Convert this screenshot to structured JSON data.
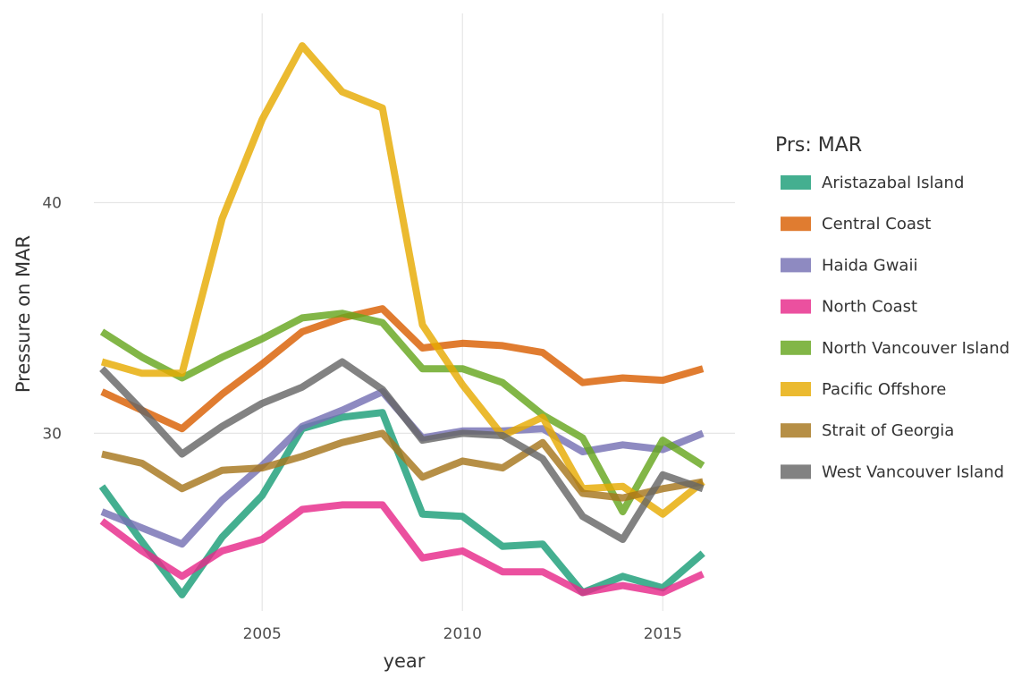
{
  "chart_data": {
    "type": "line",
    "xlabel": "year",
    "ylabel": "Pressure on MAR",
    "legend_title": "Prs: MAR",
    "legend_position": "right",
    "grid": true,
    "xlim": [
      2000.8,
      2016.8
    ],
    "ylim": [
      22.3,
      48.2
    ],
    "x_ticks": [
      2005,
      2010,
      2015
    ],
    "y_ticks": [
      30,
      40
    ],
    "x": [
      2001,
      2002,
      2003,
      2004,
      2005,
      2006,
      2007,
      2008,
      2009,
      2010,
      2011,
      2012,
      2013,
      2014,
      2015,
      2016
    ],
    "series": [
      {
        "name": "Aristazabal Island",
        "color": "#1b9e77",
        "values": [
          27.7,
          25.3,
          23.0,
          25.5,
          27.3,
          30.2,
          30.7,
          30.9,
          26.5,
          26.4,
          25.1,
          25.2,
          23.1,
          23.8,
          23.3,
          24.8
        ]
      },
      {
        "name": "Central Coast",
        "color": "#d95f02",
        "values": [
          31.8,
          31.0,
          30.2,
          31.7,
          33.0,
          34.4,
          35.0,
          35.4,
          33.7,
          33.9,
          33.8,
          33.5,
          32.2,
          32.4,
          32.3,
          32.8
        ]
      },
      {
        "name": "Haida Gwaii",
        "color": "#7570b3",
        "values": [
          26.6,
          25.9,
          25.2,
          27.1,
          28.6,
          30.3,
          31.0,
          31.8,
          29.8,
          30.1,
          30.1,
          30.2,
          29.2,
          29.5,
          29.3,
          30.0
        ]
      },
      {
        "name": "North Coast",
        "color": "#e7298a",
        "values": [
          26.2,
          24.9,
          23.8,
          24.9,
          25.4,
          26.7,
          26.9,
          26.9,
          24.6,
          24.9,
          24.0,
          24.0,
          23.1,
          23.4,
          23.1,
          23.9
        ]
      },
      {
        "name": "North Vancouver Island",
        "color": "#66a61e",
        "values": [
          34.4,
          33.3,
          32.4,
          33.3,
          34.1,
          35.0,
          35.2,
          34.8,
          32.8,
          32.8,
          32.2,
          30.8,
          29.8,
          26.6,
          29.7,
          28.6
        ]
      },
      {
        "name": "Pacific Offshore",
        "color": "#e6ab02",
        "values": [
          33.1,
          32.6,
          32.6,
          39.3,
          43.6,
          46.8,
          44.8,
          44.1,
          34.7,
          32.1,
          29.9,
          30.7,
          27.6,
          27.7,
          26.5,
          27.9
        ]
      },
      {
        "name": "Strait of Georgia",
        "color": "#a6761d",
        "values": [
          29.1,
          28.7,
          27.6,
          28.4,
          28.5,
          29.0,
          29.6,
          30.0,
          28.1,
          28.8,
          28.5,
          29.6,
          27.4,
          27.2,
          27.6,
          27.9
        ]
      },
      {
        "name": "West Vancouver Island",
        "color": "#666666",
        "values": [
          32.8,
          31.0,
          29.1,
          30.3,
          31.3,
          32.0,
          33.1,
          31.9,
          29.7,
          30.0,
          29.9,
          28.9,
          26.4,
          25.4,
          28.2,
          27.6
        ]
      }
    ]
  }
}
